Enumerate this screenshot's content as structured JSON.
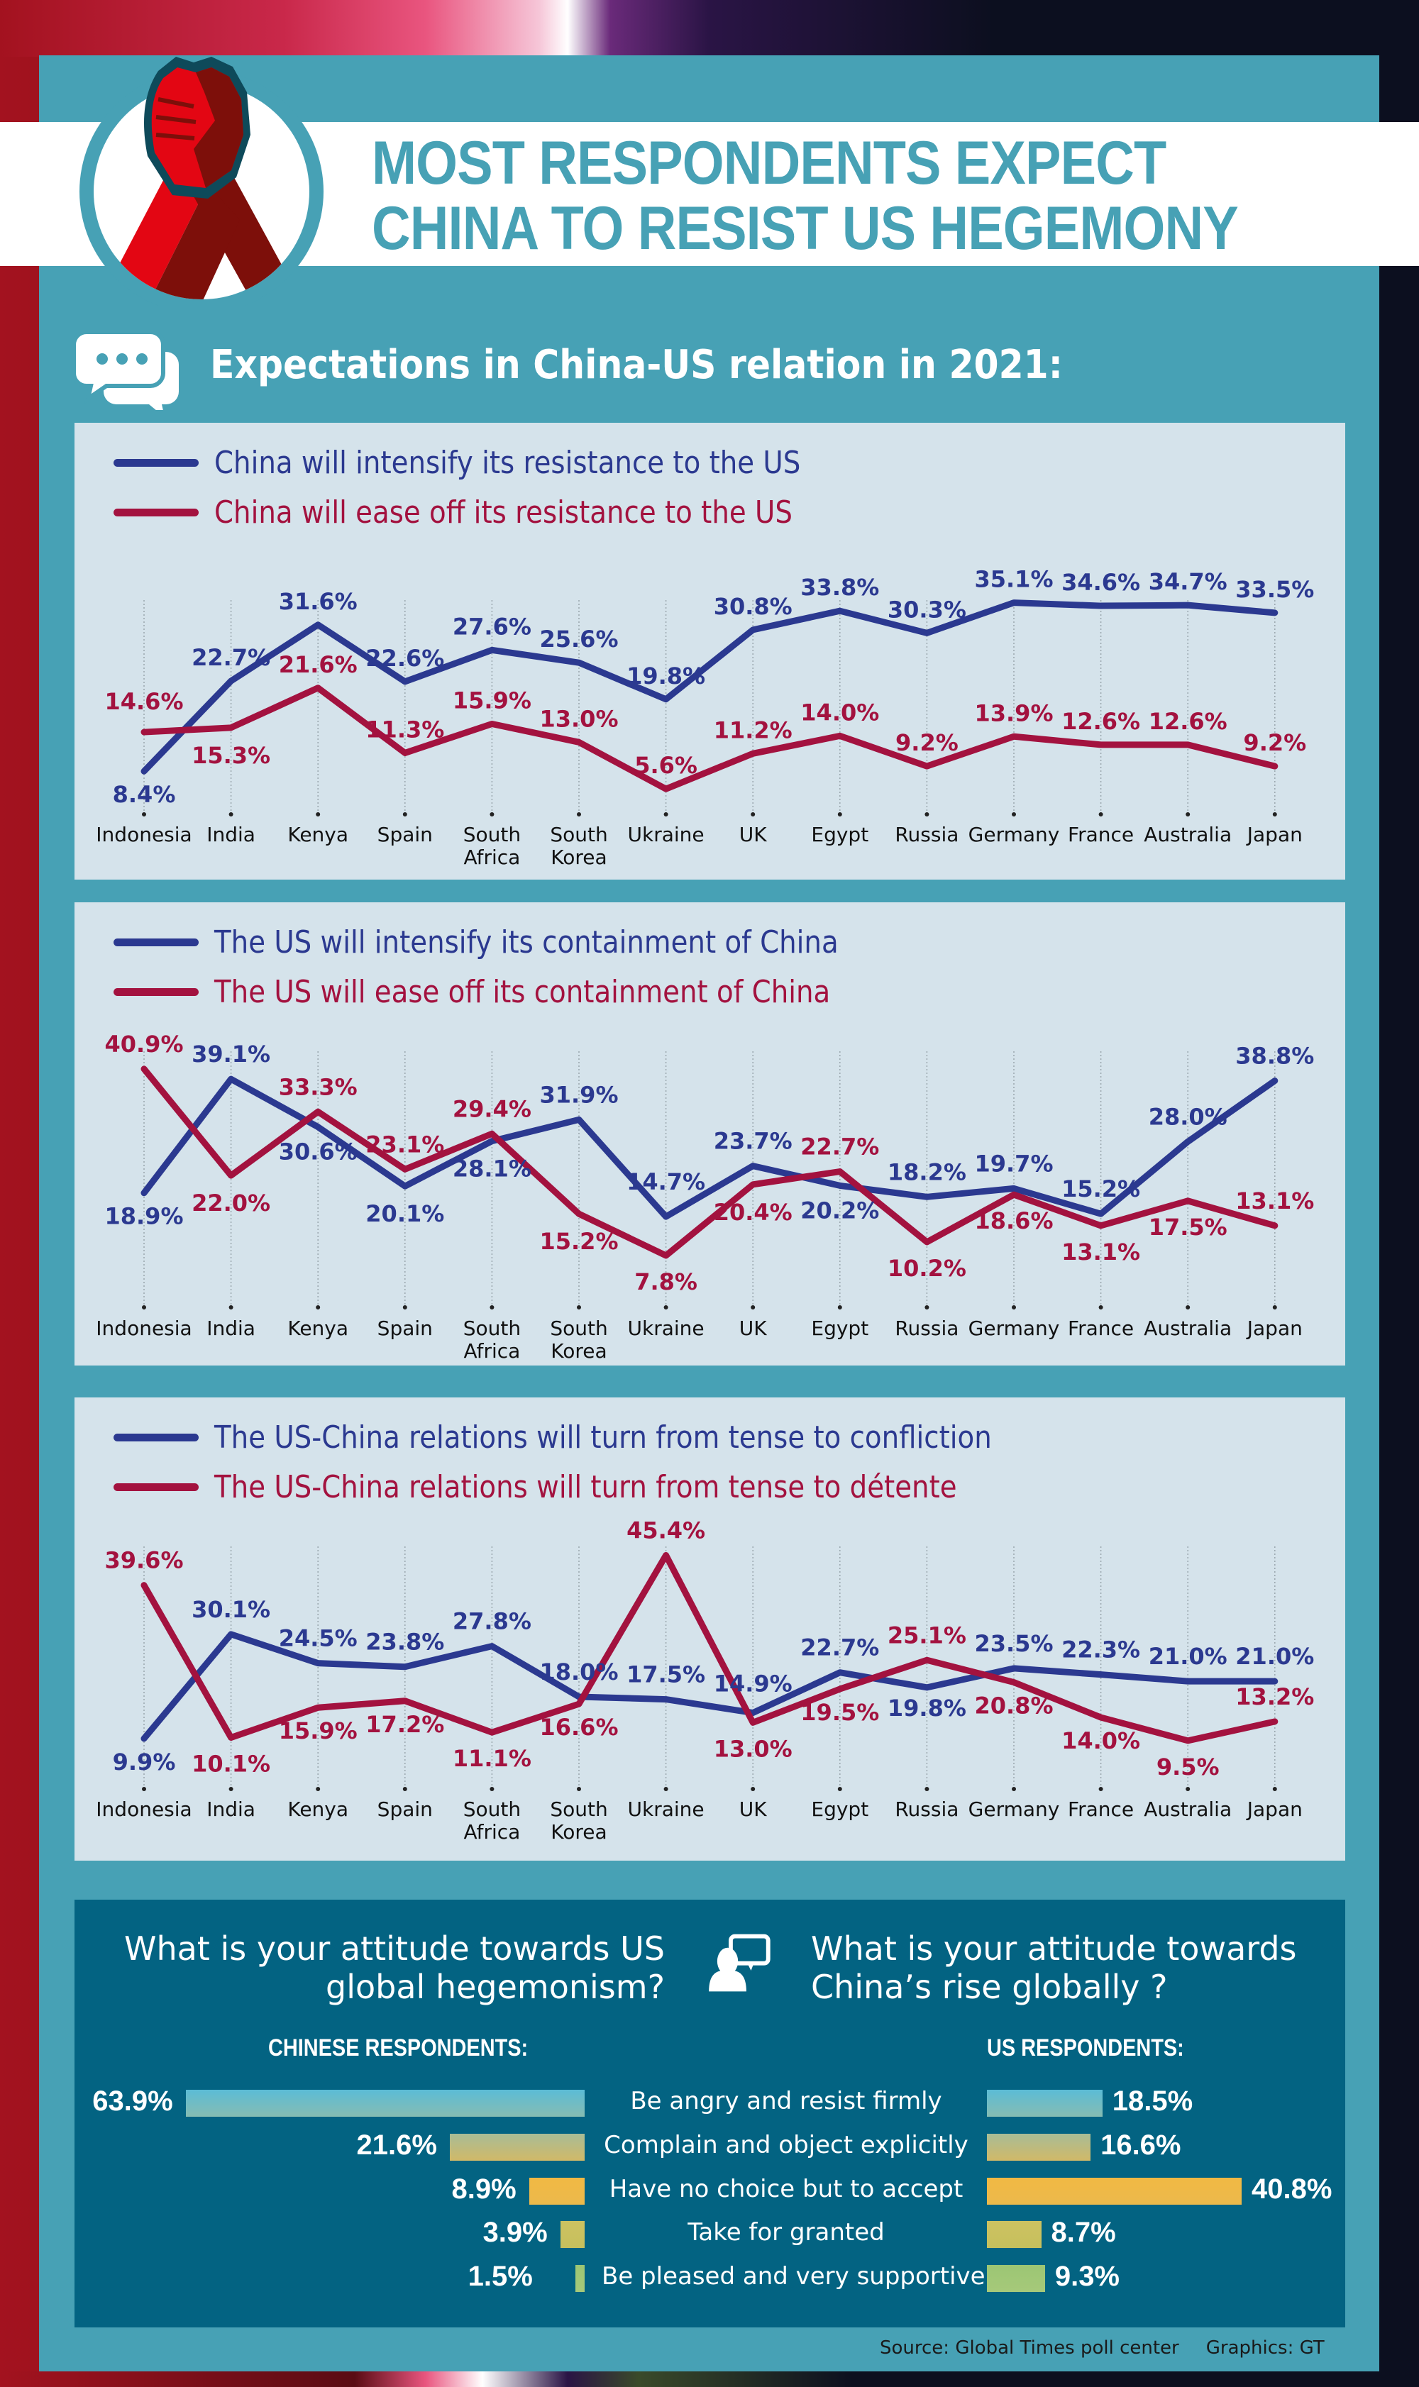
{
  "header": {
    "title_line1": "MOST RESPONDENTS EXPECT",
    "title_line2": "CHINA TO RESIST US HEGEMONY",
    "logo_icon": "arm-wrestling-hands-icon"
  },
  "section": {
    "icon": "chat-bubbles-icon",
    "title": "Expectations in China-US relation in 2021:"
  },
  "colors": {
    "intensify": "#2b3990",
    "ease": "#a3123f",
    "frame": "#47a1b5",
    "panel": "#d5e3eb",
    "bottom_panel": "#036382"
  },
  "chart_data": [
    {
      "type": "line",
      "title": "",
      "categories": [
        "Indonesia",
        "India",
        "Kenya",
        "Spain",
        "South Africa",
        "South Korea",
        "Ukraine",
        "UK",
        "Egypt",
        "Russia",
        "Germany",
        "France",
        "Australia",
        "Japan"
      ],
      "category_lines": [
        [
          "Indonesia"
        ],
        [
          "India"
        ],
        [
          "Kenya"
        ],
        [
          "Spain"
        ],
        [
          "South",
          "Africa"
        ],
        [
          "South",
          "Korea"
        ],
        [
          "Ukraine"
        ],
        [
          "UK"
        ],
        [
          "Egypt"
        ],
        [
          "Russia"
        ],
        [
          "Germany"
        ],
        [
          "France"
        ],
        [
          "Australia"
        ],
        [
          "Japan"
        ]
      ],
      "series": [
        {
          "name": "China will intensify its resistance to the US",
          "color": "#2b3990",
          "values": [
            8.4,
            22.7,
            31.6,
            22.6,
            27.6,
            25.6,
            19.8,
            30.8,
            33.8,
            30.3,
            35.1,
            34.6,
            34.7,
            33.5
          ],
          "labels": [
            "8.4%",
            "22.7%",
            "31.6%",
            "22.6%",
            "27.6%",
            "25.6%",
            "19.8%",
            "30.8%",
            "33.8%",
            "30.3%",
            "35.1%",
            "34.6%",
            "34.7%",
            "33.5%"
          ]
        },
        {
          "name": "China will ease off its resistance to the US",
          "color": "#a3123f",
          "values": [
            14.6,
            15.3,
            21.6,
            11.3,
            15.9,
            13.0,
            5.6,
            11.2,
            14.0,
            9.2,
            13.9,
            12.6,
            12.6,
            9.2
          ],
          "labels": [
            "14.6%",
            "15.3%",
            "21.6%",
            "11.3%",
            "15.9%",
            "13.0%",
            "5.6%",
            "11.2%",
            "14.0%",
            "9.2%",
            "13.9%",
            "12.6%",
            "12.6%",
            "9.2%"
          ]
        }
      ],
      "xlabel": "",
      "ylabel": "",
      "grid": "vertical-dotted",
      "legend": "top-left"
    },
    {
      "type": "line",
      "title": "",
      "categories": [
        "Indonesia",
        "India",
        "Kenya",
        "Spain",
        "South Africa",
        "South Korea",
        "Ukraine",
        "UK",
        "Egypt",
        "Russia",
        "Germany",
        "France",
        "Australia",
        "Japan"
      ],
      "category_lines": [
        [
          "Indonesia"
        ],
        [
          "India"
        ],
        [
          "Kenya"
        ],
        [
          "Spain"
        ],
        [
          "South",
          "Africa"
        ],
        [
          "South",
          "Korea"
        ],
        [
          "Ukraine"
        ],
        [
          "UK"
        ],
        [
          "Egypt"
        ],
        [
          "Russia"
        ],
        [
          "Germany"
        ],
        [
          "France"
        ],
        [
          "Australia"
        ],
        [
          "Japan"
        ]
      ],
      "series": [
        {
          "name": "The US will intensify its containment of China",
          "color": "#2b3990",
          "values": [
            18.9,
            39.1,
            30.6,
            20.1,
            28.1,
            31.9,
            14.7,
            23.7,
            20.2,
            18.2,
            19.7,
            15.2,
            28.0,
            38.8
          ],
          "labels": [
            "18.9%",
            "39.1%",
            "30.6%",
            "20.1%",
            "28.1%",
            "31.9%",
            "14.7%",
            "23.7%",
            "20.2%",
            "18.2%",
            "19.7%",
            "15.2%",
            "28.0%",
            "38.8%"
          ]
        },
        {
          "name": "The US will ease off its containment of China",
          "color": "#a3123f",
          "values": [
            40.9,
            22.0,
            33.3,
            23.1,
            29.4,
            15.2,
            7.8,
            20.4,
            22.7,
            10.2,
            18.6,
            13.1,
            17.5,
            13.1
          ],
          "labels": [
            "40.9%",
            "22.0%",
            "33.3%",
            "23.1%",
            "29.4%",
            "15.2%",
            "7.8%",
            "20.4%",
            "22.7%",
            "10.2%",
            "18.6%",
            "13.1%",
            "17.5%",
            "13.1%"
          ]
        }
      ],
      "xlabel": "",
      "ylabel": "",
      "grid": "vertical-dotted",
      "legend": "top-left"
    },
    {
      "type": "line",
      "title": "",
      "categories": [
        "Indonesia",
        "India",
        "Kenya",
        "Spain",
        "South Africa",
        "South Korea",
        "Ukraine",
        "UK",
        "Egypt",
        "Russia",
        "Germany",
        "France",
        "Australia",
        "Japan"
      ],
      "category_lines": [
        [
          "Indonesia"
        ],
        [
          "India"
        ],
        [
          "Kenya"
        ],
        [
          "Spain"
        ],
        [
          "South",
          "Africa"
        ],
        [
          "South",
          "Korea"
        ],
        [
          "Ukraine"
        ],
        [
          "UK"
        ],
        [
          "Egypt"
        ],
        [
          "Russia"
        ],
        [
          "Germany"
        ],
        [
          "France"
        ],
        [
          "Australia"
        ],
        [
          "Japan"
        ]
      ],
      "series": [
        {
          "name": "The US-China relations will turn from tense to confliction",
          "color": "#2b3990",
          "values": [
            9.9,
            30.1,
            24.5,
            23.8,
            27.8,
            18.0,
            17.5,
            14.9,
            22.7,
            19.8,
            23.5,
            22.3,
            21.0,
            21.0
          ],
          "labels": [
            "9.9%",
            "30.1%",
            "24.5%",
            "23.8%",
            "27.8%",
            "18.0%",
            "17.5%",
            "14.9%",
            "22.7%",
            "19.8%",
            "23.5%",
            "22.3%",
            "21.0%",
            "21.0%"
          ]
        },
        {
          "name": "The US-China relations will turn from tense to détente",
          "color": "#a3123f",
          "values": [
            39.6,
            10.1,
            15.9,
            17.2,
            11.1,
            16.6,
            45.4,
            13.0,
            19.5,
            25.1,
            20.8,
            14.0,
            9.5,
            13.2
          ],
          "labels": [
            "39.6%",
            "10.1%",
            "15.9%",
            "17.2%",
            "11.1%",
            "16.6%",
            "45.4%",
            "13.0%",
            "19.5%",
            "25.1%",
            "20.8%",
            "14.0%",
            "9.5%",
            "13.2%"
          ]
        }
      ],
      "xlabel": "",
      "ylabel": "",
      "grid": "vertical-dotted",
      "legend": "top-left"
    },
    {
      "type": "bar",
      "title": "What is your attitude towards US global hegemonism? / What is your attitude towards China’s rise globally ?",
      "categories": [
        "Be angry and resist firmly",
        "Complain and object explicitly",
        "Have no choice but to accept",
        "Take for granted",
        "Be pleased and very supportive"
      ],
      "series": [
        {
          "name": "CHINESE RESPONDENTS:",
          "values": [
            63.9,
            21.6,
            8.9,
            3.9,
            1.5
          ],
          "labels": [
            "63.9%",
            "21.6%",
            "8.9%",
            "3.9%",
            "1.5%"
          ]
        },
        {
          "name": "US RESPONDENTS:",
          "values": [
            18.5,
            16.6,
            40.8,
            8.7,
            9.3
          ],
          "labels": [
            "18.5%",
            "16.6%",
            "40.8%",
            "8.7%",
            "9.3%"
          ]
        }
      ],
      "bar_colors": [
        [
          "#5bbcd6",
          "#86bcb2"
        ],
        [
          "#a8bc96",
          "#d1b968"
        ],
        [
          "#f1b944",
          "#ecb94b"
        ],
        [
          "#cdc261",
          "#c6c05d"
        ],
        [
          "#9cc674",
          "#a6c97a"
        ]
      ],
      "orientation": "horizontal-diverging",
      "xlabel": "",
      "ylabel": ""
    }
  ],
  "attitude": {
    "left_question_line1": "What is your attitude towards US",
    "left_question_line2": "global hegemonism?",
    "right_question_line1": "What is your attitude towards",
    "right_question_line2": "China’s rise globally ?",
    "icon": "person-speech-bubble-icon",
    "left_heading": "CHINESE RESPONDENTS:",
    "right_heading": "US RESPONDENTS:"
  },
  "footer": {
    "source": "Source: Global Times poll center",
    "graphics": "Graphics: GT"
  }
}
